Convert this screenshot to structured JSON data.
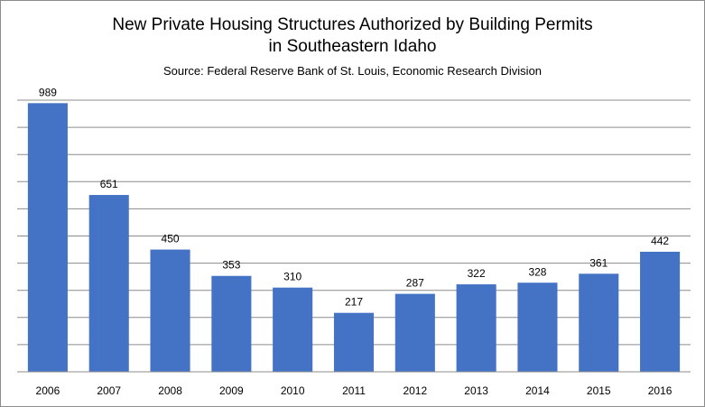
{
  "chart_data": {
    "type": "bar",
    "title_line1": "New Private Housing Structures Authorized by Building Permits",
    "title_line2": "in Southeastern Idaho",
    "subtitle": "Source: Federal Reserve Bank of St. Louis, Economic Research Division",
    "categories": [
      "2006",
      "2007",
      "2008",
      "2009",
      "2010",
      "2011",
      "2012",
      "2013",
      "2014",
      "2015",
      "2016"
    ],
    "values": [
      989,
      651,
      450,
      353,
      310,
      217,
      287,
      322,
      328,
      361,
      442
    ],
    "ylim": [
      0,
      1000
    ],
    "gridlines": 10,
    "bar_color": "#4472C4",
    "grid_color": "#8c8c8c"
  }
}
